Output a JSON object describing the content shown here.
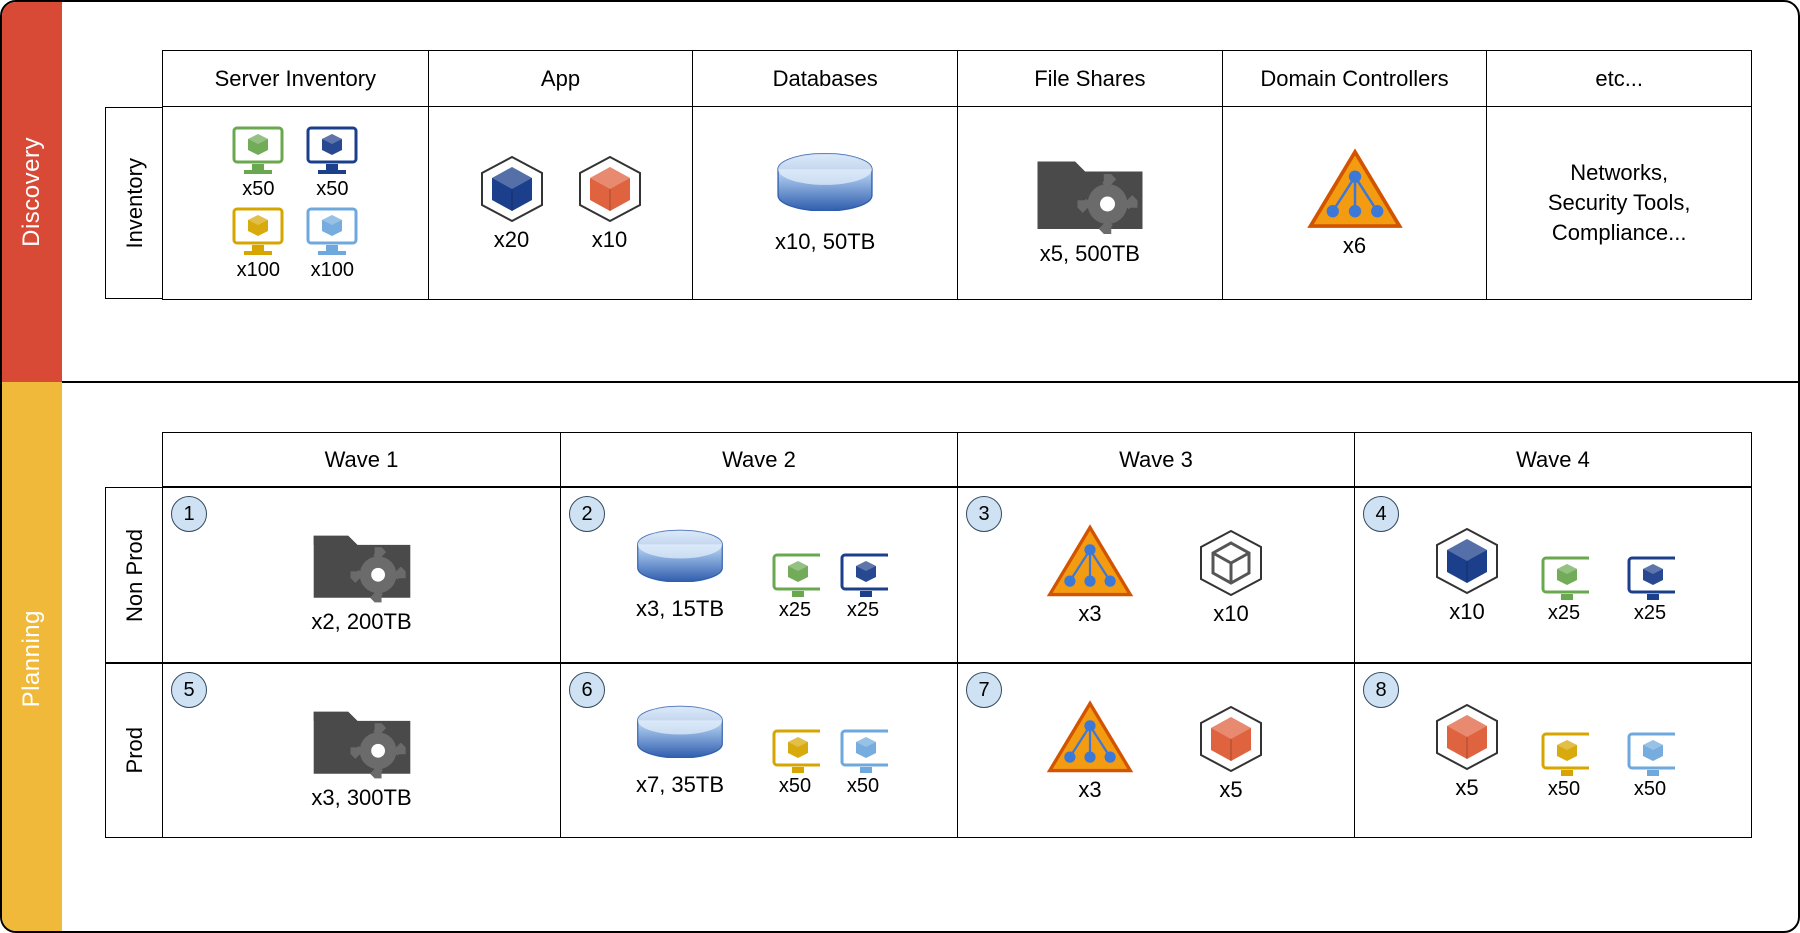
{
  "colors": {
    "discovery_bg": "#d94a36",
    "planning_bg": "#f0b93a",
    "border": "#000000",
    "connector": "#a61c3c",
    "badge_fill": "#cfe2f3",
    "badge_border": "#34495e",
    "monitor_green": "#6aa84f",
    "monitor_navy": "#1c3f8b",
    "monitor_gold": "#d6a500",
    "monitor_blue": "#6fa8dc",
    "cube_navy": "#1c3f8b",
    "cube_red": "#e06340",
    "db_top": "#bcd9f7",
    "db_bot": "#2f5dad",
    "folder": "#4a4a4a",
    "gear": "#6b6b6b",
    "triangle_fill": "#f39c12",
    "triangle_stroke": "#d35400",
    "triangle_node": "#3c78d8"
  },
  "phases": {
    "discovery": "Discovery",
    "planning": "Planning"
  },
  "discovery": {
    "inventory_tab": "Inventory",
    "headers": {
      "server_inventory": "Server Inventory",
      "app": "App",
      "databases": "Databases",
      "file_shares": "File Shares",
      "domain_controllers": "Domain Controllers",
      "etc": "etc..."
    },
    "server_inventory": {
      "green": "x50",
      "navy": "x50",
      "gold": "x100",
      "blue": "x100"
    },
    "app": {
      "navy": "x20",
      "red": "x10"
    },
    "databases": {
      "label": "x10, 50TB"
    },
    "file_shares": {
      "label": "x5, 500TB"
    },
    "domain_controllers": {
      "label": "x6"
    },
    "etc_text": "Networks,\nSecurity Tools,\nCompliance..."
  },
  "planning": {
    "row_labels": {
      "non_prod": "Non Prod",
      "prod": "Prod"
    },
    "wave_headers": {
      "w1": "Wave 1",
      "w2": "Wave 2",
      "w3": "Wave 3",
      "w4": "Wave 4"
    },
    "non_prod": {
      "w1": {
        "badge": "1",
        "label": "x2, 200TB"
      },
      "w2": {
        "badge": "2",
        "db": "x3, 15TB",
        "green": "x25",
        "navy": "x25"
      },
      "w3": {
        "badge": "3",
        "tri": "x3",
        "cube": "x10"
      },
      "w4": {
        "badge": "4",
        "cube": "x10",
        "green": "x25",
        "navy": "x25"
      }
    },
    "prod": {
      "w1": {
        "badge": "5",
        "label": "x3, 300TB"
      },
      "w2": {
        "badge": "6",
        "db": "x7, 35TB",
        "gold": "x50",
        "blue": "x50"
      },
      "w3": {
        "badge": "7",
        "tri": "x3",
        "cube": "x5"
      },
      "w4": {
        "badge": "8",
        "cube": "x5",
        "gold": "x50",
        "blue": "x50"
      }
    }
  }
}
